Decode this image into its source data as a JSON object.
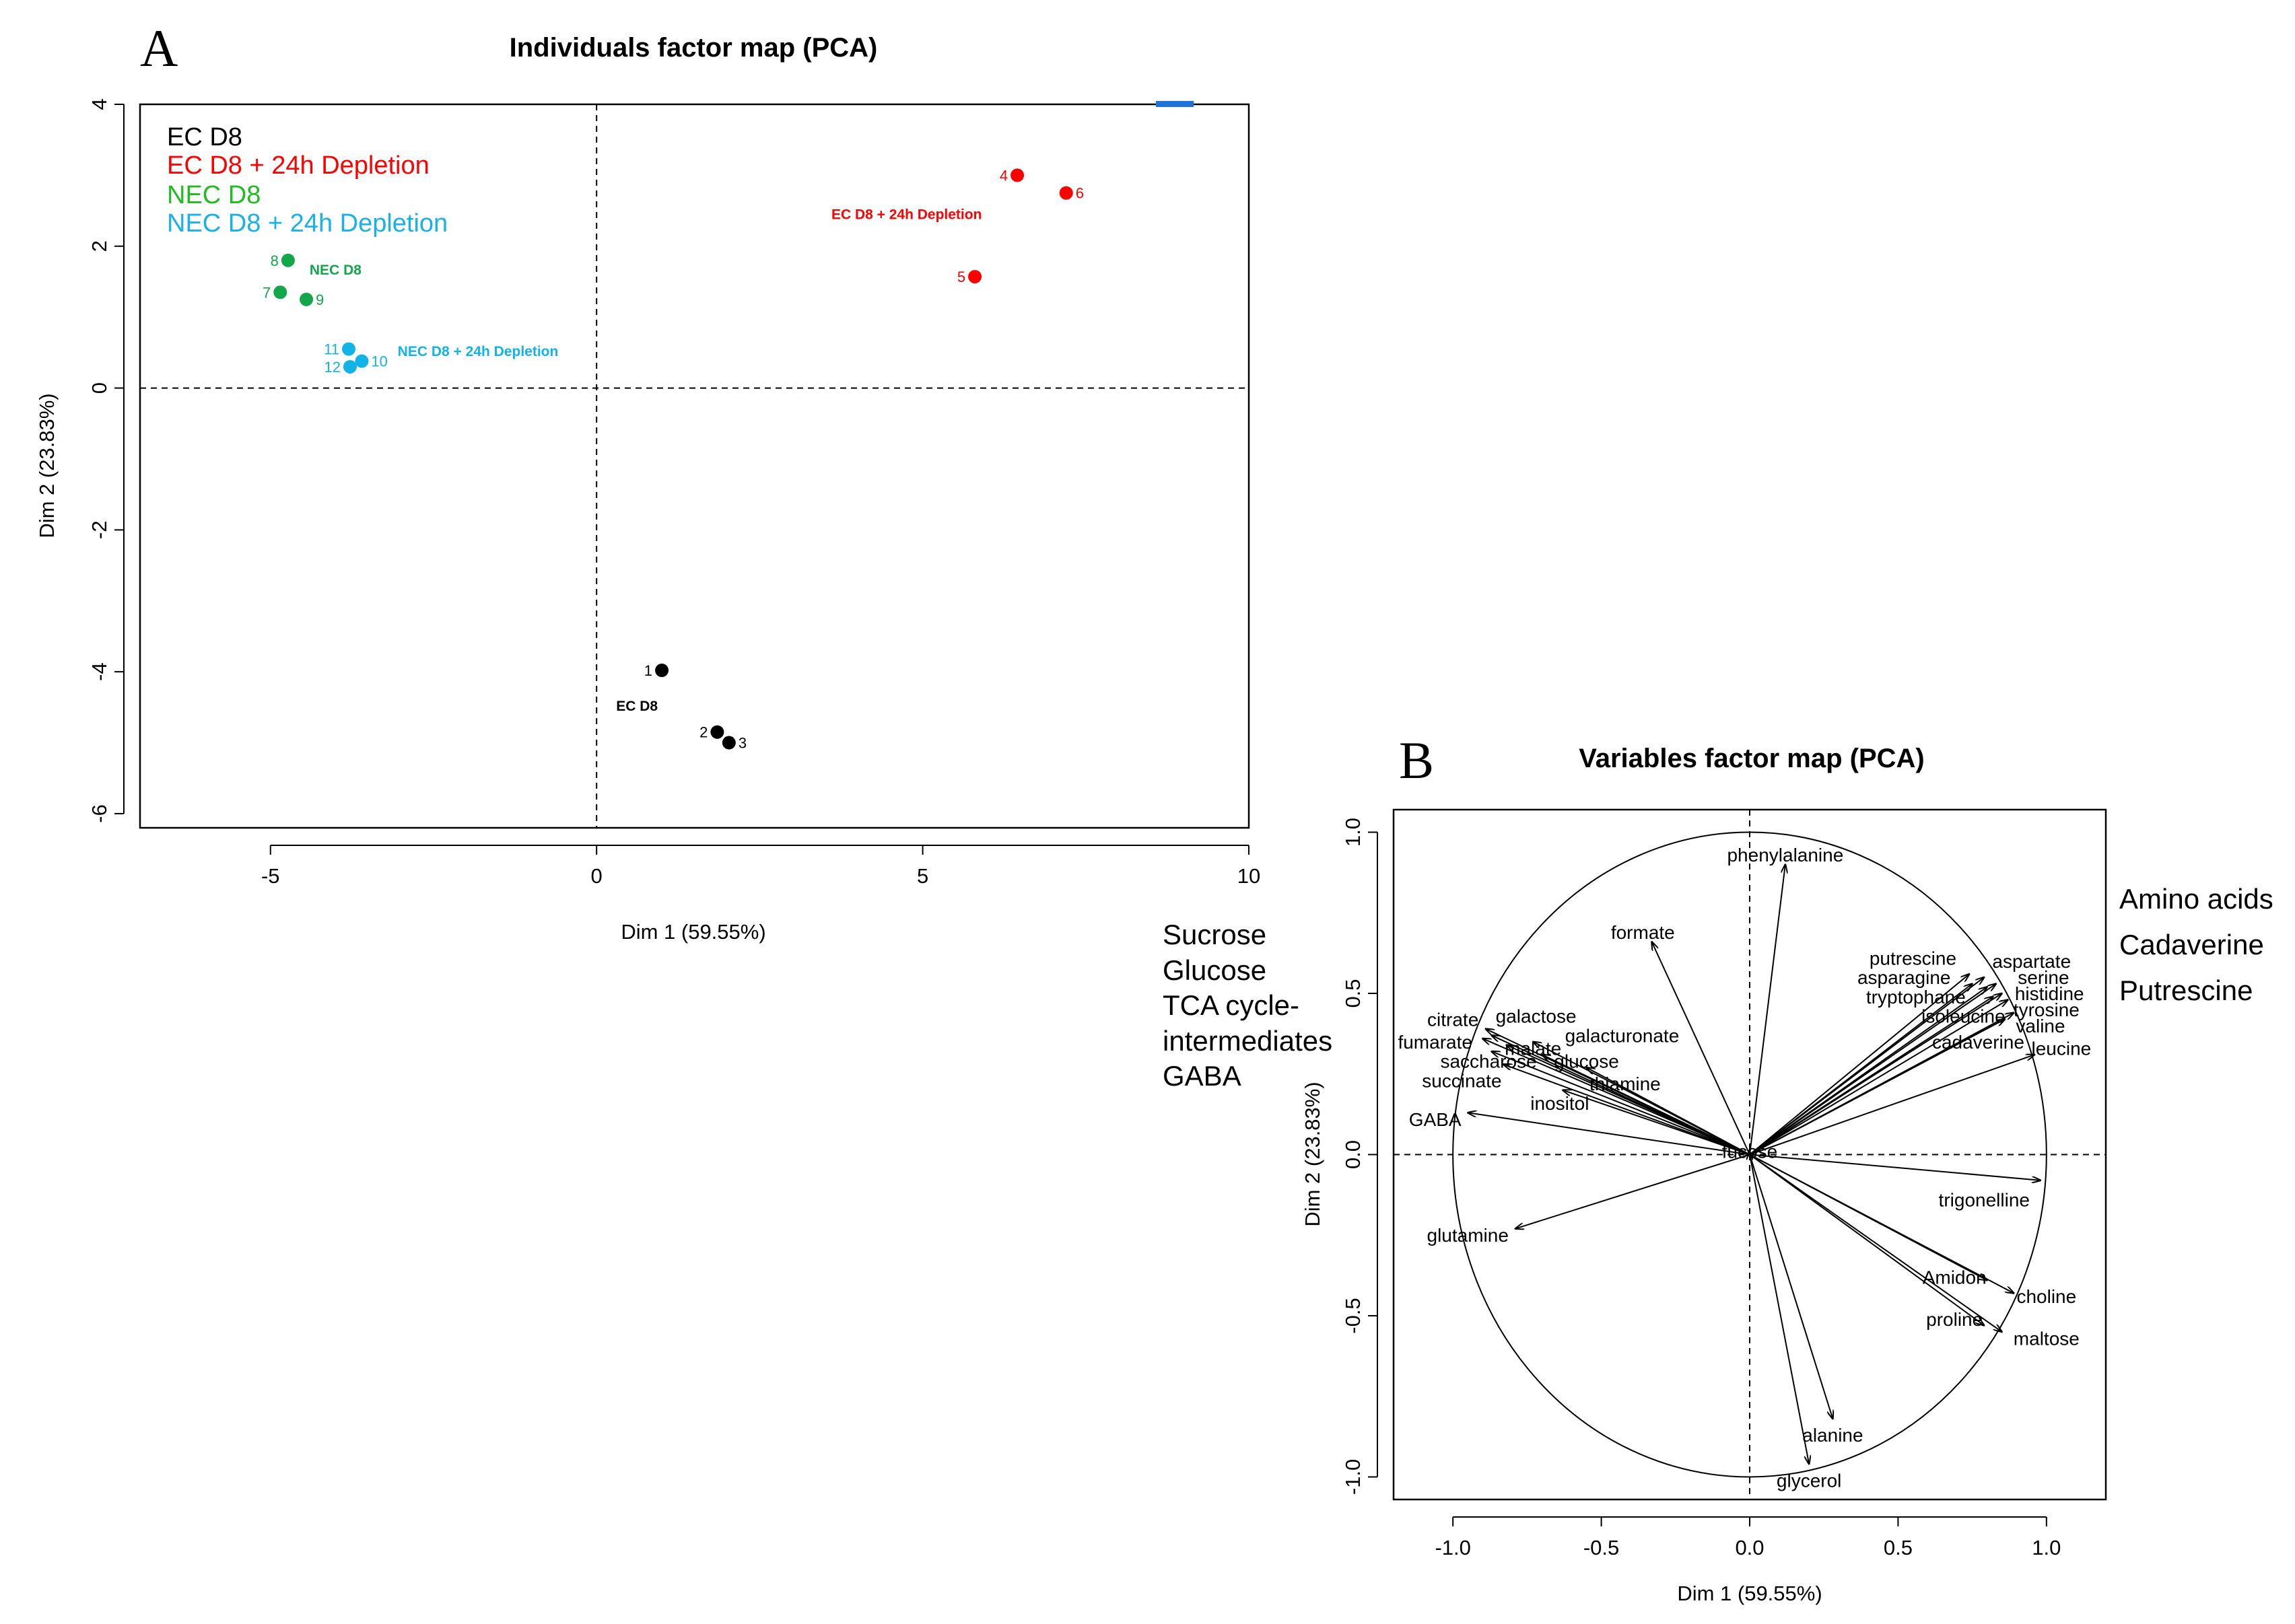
{
  "colors": {
    "ec": "#000000",
    "ec_dep": "#ff0000",
    "nec": "#14a64a",
    "nec_dep": "#12b3e6",
    "legend_green": "#22bb22",
    "legend_blue": "#1ab0e8"
  },
  "panelA": {
    "letter": "A",
    "chart_data": {
      "type": "scatter",
      "title": "Individuals factor map (PCA)",
      "xlabel": "Dim 1 (59.55%)",
      "ylabel": "Dim 2 (23.83%)",
      "xlim": [
        -7,
        10
      ],
      "ylim": [
        -6.2,
        4
      ],
      "xticks": [
        -5,
        0,
        5,
        10
      ],
      "yticks": [
        -6,
        -4,
        -2,
        0,
        2,
        4
      ],
      "legend": [
        "EC D8",
        "EC D8 + 24h Depletion",
        "NEC D8",
        "NEC D8 + 24h Depletion"
      ],
      "legend_position": "top-left",
      "points": [
        {
          "label": "1",
          "x": 1.0,
          "y": -3.98,
          "group": "ec"
        },
        {
          "label": "2",
          "x": 1.85,
          "y": -4.85,
          "group": "ec"
        },
        {
          "label": "3",
          "x": 2.03,
          "y": -5.0,
          "group": "ec"
        },
        {
          "label": "4",
          "x": 6.45,
          "y": 3.0,
          "group": "ec_dep"
        },
        {
          "label": "5",
          "x": 5.8,
          "y": 1.57,
          "group": "ec_dep"
        },
        {
          "label": "6",
          "x": 7.2,
          "y": 2.75,
          "group": "ec_dep"
        },
        {
          "label": "7",
          "x": -4.85,
          "y": 1.35,
          "group": "nec"
        },
        {
          "label": "8",
          "x": -4.73,
          "y": 1.8,
          "group": "nec"
        },
        {
          "label": "9",
          "x": -4.45,
          "y": 1.25,
          "group": "nec"
        },
        {
          "label": "10",
          "x": -3.6,
          "y": 0.38,
          "group": "nec_dep"
        },
        {
          "label": "11",
          "x": -3.8,
          "y": 0.55,
          "group": "nec_dep"
        },
        {
          "label": "12",
          "x": -3.78,
          "y": 0.3,
          "group": "nec_dep"
        }
      ],
      "group_labels": [
        {
          "text": "EC D8",
          "x": 0.3,
          "y": -4.55,
          "group": "ec"
        },
        {
          "text": "EC D8 + 24h Depletion",
          "x": 3.6,
          "y": 2.38,
          "group": "ec_dep"
        },
        {
          "text": "NEC D8",
          "x": -4.4,
          "y": 1.6,
          "group": "nec"
        },
        {
          "text": "NEC D8 + 24h Depletion",
          "x": -3.05,
          "y": 0.45,
          "group": "nec_dep"
        }
      ]
    }
  },
  "panelB": {
    "letter": "B",
    "chart_data": {
      "type": "scatter",
      "title": "Variables factor map (PCA)",
      "xlabel": "Dim 1 (59.55%)",
      "ylabel": "Dim 2 (23.83%)",
      "xlim": [
        -1.2,
        1.2
      ],
      "ylim": [
        -1.07,
        1.07
      ],
      "xticks": [
        -1.0,
        -0.5,
        0.0,
        0.5,
        1.0
      ],
      "yticks": [
        -1.0,
        -0.5,
        0.0,
        0.5,
        1.0
      ],
      "variables": [
        {
          "name": "phenylalanine",
          "x": 0.12,
          "y": 0.9,
          "lx": 0.12,
          "ly": 0.93
        },
        {
          "name": "formate",
          "x": -0.33,
          "y": 0.66,
          "lx": -0.36,
          "ly": 0.69
        },
        {
          "name": "putrescine",
          "x": 0.74,
          "y": 0.56,
          "lx": 0.55,
          "ly": 0.61
        },
        {
          "name": "aspartate",
          "x": 0.79,
          "y": 0.55,
          "lx": 0.95,
          "ly": 0.6
        },
        {
          "name": "asparagine",
          "x": 0.75,
          "y": 0.53,
          "lx": 0.52,
          "ly": 0.55
        },
        {
          "name": "serine",
          "x": 0.83,
          "y": 0.53,
          "lx": 0.99,
          "ly": 0.55
        },
        {
          "name": "tryptophane",
          "x": 0.8,
          "y": 0.52,
          "lx": 0.56,
          "ly": 0.49
        },
        {
          "name": "histidine",
          "x": 0.85,
          "y": 0.5,
          "lx": 1.01,
          "ly": 0.5
        },
        {
          "name": "isoleucine",
          "x": 0.82,
          "y": 0.49,
          "lx": 0.72,
          "ly": 0.43
        },
        {
          "name": "tyrosine",
          "x": 0.87,
          "y": 0.48,
          "lx": 1.0,
          "ly": 0.45
        },
        {
          "name": "valine",
          "x": 0.89,
          "y": 0.44,
          "lx": 0.98,
          "ly": 0.4
        },
        {
          "name": "cadaverine",
          "x": 0.86,
          "y": 0.42,
          "lx": 0.77,
          "ly": 0.35
        },
        {
          "name": "leucine",
          "x": 0.96,
          "y": 0.31,
          "lx": 1.05,
          "ly": 0.33
        },
        {
          "name": "citrate",
          "x": -0.89,
          "y": 0.39,
          "lx": -1.0,
          "ly": 0.42
        },
        {
          "name": "galactose",
          "x": -0.87,
          "y": 0.37,
          "lx": -0.72,
          "ly": 0.43
        },
        {
          "name": "galacturonate",
          "x": -0.73,
          "y": 0.35,
          "lx": -0.43,
          "ly": 0.37
        },
        {
          "name": "fumarate",
          "x": -0.9,
          "y": 0.36,
          "lx": -1.06,
          "ly": 0.35
        },
        {
          "name": "malate",
          "x": -0.82,
          "y": 0.34,
          "lx": -0.73,
          "ly": 0.33
        },
        {
          "name": "saccharose",
          "x": -0.87,
          "y": 0.32,
          "lx": -0.88,
          "ly": 0.29
        },
        {
          "name": "glucose",
          "x": -0.7,
          "y": 0.31,
          "lx": -0.55,
          "ly": 0.29
        },
        {
          "name": "thiamine",
          "x": -0.55,
          "y": 0.27,
          "lx": -0.42,
          "ly": 0.22
        },
        {
          "name": "succinate",
          "x": -0.83,
          "y": 0.28,
          "lx": -0.97,
          "ly": 0.23
        },
        {
          "name": "inositol",
          "x": -0.63,
          "y": 0.2,
          "lx": -0.64,
          "ly": 0.16
        },
        {
          "name": "GABA",
          "x": -0.95,
          "y": 0.13,
          "lx": -1.06,
          "ly": 0.11
        },
        {
          "name": "fucose",
          "x": 0.0,
          "y": 0.01,
          "lx": 0.0,
          "ly": 0.01
        },
        {
          "name": "trigonelline",
          "x": 0.98,
          "y": -0.08,
          "lx": 0.79,
          "ly": -0.14
        },
        {
          "name": "glutamine",
          "x": -0.79,
          "y": -0.23,
          "lx": -0.95,
          "ly": -0.25
        },
        {
          "name": "Amidon",
          "x": 0.8,
          "y": -0.39,
          "lx": 0.69,
          "ly": -0.38
        },
        {
          "name": "choline",
          "x": 0.89,
          "y": -0.43,
          "lx": 1.0,
          "ly": -0.44
        },
        {
          "name": "proline",
          "x": 0.79,
          "y": -0.53,
          "lx": 0.69,
          "ly": -0.51
        },
        {
          "name": "maltose",
          "x": 0.85,
          "y": -0.55,
          "lx": 1.0,
          "ly": -0.57
        },
        {
          "name": "alanine",
          "x": 0.28,
          "y": -0.82,
          "lx": 0.28,
          "ly": -0.87
        },
        {
          "name": "glycerol",
          "x": 0.2,
          "y": -0.96,
          "lx": 0.2,
          "ly": -1.01
        }
      ]
    }
  },
  "annotations": {
    "left": [
      "Sucrose",
      "Glucose",
      "TCA cycle-",
      "intermediates",
      "GABA"
    ],
    "right": [
      "Amino acids",
      "Cadaverine",
      "Putrescine"
    ]
  }
}
